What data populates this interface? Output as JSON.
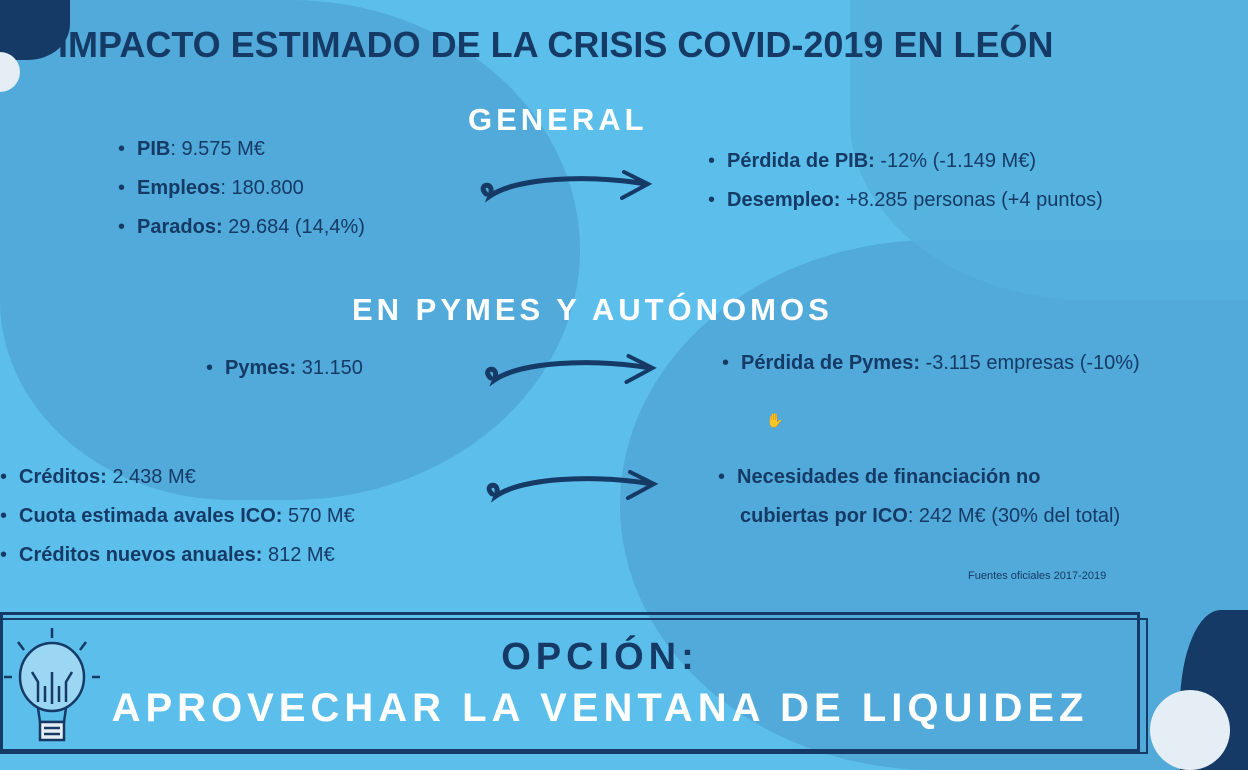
{
  "title": "IMPACTO ESTIMADO DE LA CRISIS COVID-2019 EN LEÓN",
  "general": {
    "heading": "GENERAL",
    "left": [
      {
        "label": "PIB",
        "value": ": 9.575 M€"
      },
      {
        "label": "Empleos",
        "value": ": 180.800"
      },
      {
        "label": "Parados:",
        "value": " 29.684 (14,4%)"
      }
    ],
    "right": [
      {
        "label": "Pérdida de PIB:",
        "value": " -12% (-1.149 M€)"
      },
      {
        "label": "Desempleo:",
        "value": " +8.285 personas (+4 puntos)"
      }
    ]
  },
  "pymes": {
    "heading": "EN PYMES Y AUTÓNOMOS",
    "left": [
      {
        "label": "Pymes:",
        "value": " 31.150"
      }
    ],
    "right": [
      {
        "label": "Pérdida de Pymes:",
        "value": " -3.115 empresas (-10%)"
      }
    ]
  },
  "creditos": {
    "left": [
      {
        "label": "Créditos:",
        "value": " 2.438 M€"
      },
      {
        "label": "Cuota estimada avales ICO:",
        "value": " 570 M€"
      },
      {
        "label": "Créditos nuevos anuales:",
        "value": " 812 M€"
      }
    ],
    "right": {
      "label1": "Necesidades de financiación no",
      "label2": "cubiertas por ICO",
      "value": ": 242 M€ (30% del total)"
    }
  },
  "source": "Fuentes oficiales 2017-2019",
  "option": {
    "line1": "OPCIÓN:",
    "line2": "APROVECHAR LA VENTANA DE LIQUIDEZ"
  },
  "colors": {
    "background": "#5cbfeb",
    "navy": "#163a66",
    "white": "#ffffff"
  },
  "icons": [
    "arrow-right-icon",
    "lightbulb-icon",
    "hand-cursor-icon"
  ]
}
